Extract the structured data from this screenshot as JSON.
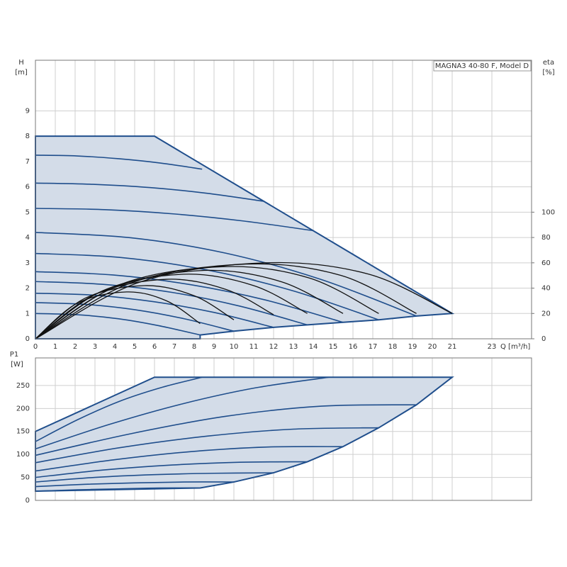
{
  "chart_data": [
    {
      "type": "line",
      "annotation": "MAGNA3 40-80 F, Model D",
      "y_label": "H",
      "y_unit": "[m]",
      "y2_label": "eta",
      "y2_unit": "[%]",
      "x_label": "Q [m³/h]",
      "xlim": [
        0,
        25
      ],
      "xticks": [
        0,
        1,
        2,
        3,
        4,
        5,
        6,
        7,
        8,
        9,
        10,
        11,
        12,
        13,
        14,
        15,
        16,
        17,
        18,
        19,
        20,
        21,
        23
      ],
      "ylim": [
        0,
        11
      ],
      "yticks": [
        0,
        1,
        2,
        3,
        4,
        5,
        6,
        7,
        8,
        9
      ],
      "y2lim": [
        0,
        220
      ],
      "y2ticks": [
        0,
        20,
        40,
        60,
        80,
        100
      ],
      "grid": true,
      "area": {
        "color": "#d3dce8",
        "edge": "#1f4e8c",
        "x": [
          0,
          0,
          6,
          21,
          19.2,
          17.3,
          15.5,
          13.7,
          12,
          10,
          8.3,
          8.3
        ],
        "values": [
          0,
          8,
          8,
          1.0,
          0.9,
          0.75,
          0.65,
          0.55,
          0.45,
          0.3,
          0.15,
          0
        ]
      },
      "series": [
        {
          "color": "#1f4e8c",
          "x": [
            0,
            2.1,
            4.2,
            6.2,
            8.3
          ],
          "values": [
            1.0,
            0.95,
            0.79,
            0.52,
            0.15
          ]
        },
        {
          "color": "#1f4e8c",
          "x": [
            0,
            2.5,
            5,
            7.5,
            10
          ],
          "values": [
            1.43,
            1.36,
            1.15,
            0.79,
            0.3
          ]
        },
        {
          "color": "#1f4e8c",
          "x": [
            0,
            3,
            6,
            9,
            12
          ],
          "values": [
            1.8,
            1.72,
            1.46,
            1.04,
            0.45
          ]
        },
        {
          "color": "#1f4e8c",
          "x": [
            0,
            3.4,
            6.9,
            10.3,
            13.7
          ],
          "values": [
            2.26,
            2.15,
            1.83,
            1.29,
            0.55
          ]
        },
        {
          "color": "#1f4e8c",
          "x": [
            0,
            3.9,
            7.8,
            11.6,
            15.5
          ],
          "values": [
            2.65,
            2.52,
            2.14,
            1.53,
            0.65
          ]
        },
        {
          "color": "#1f4e8c",
          "x": [
            0,
            4.3,
            8.7,
            13,
            17.3
          ],
          "values": [
            3.37,
            3.21,
            2.71,
            1.89,
            0.75
          ]
        },
        {
          "color": "#1f4e8c",
          "x": [
            0,
            4.8,
            9.6,
            14.4,
            19.2
          ],
          "values": [
            4.2,
            3.99,
            3.38,
            2.34,
            0.9
          ]
        },
        {
          "color": "#1f4e8c",
          "x": [
            0,
            3.5,
            7,
            10.5,
            14
          ],
          "values": [
            5.15,
            5.1,
            4.93,
            4.65,
            4.27
          ]
        },
        {
          "color": "#1f4e8c",
          "x": [
            0,
            2.9,
            5.8,
            8.6,
            11.5
          ],
          "values": [
            6.15,
            6.1,
            5.97,
            5.75,
            5.43
          ]
        },
        {
          "color": "#1f4e8c",
          "x": [
            0,
            2.1,
            4.2,
            6.3,
            8.4
          ],
          "values": [
            7.25,
            7.22,
            7.11,
            6.94,
            6.7
          ]
        },
        {
          "color": "#111111",
          "axis": "y2",
          "x": [
            0,
            2.1,
            4.6,
            6.6,
            8.3
          ],
          "values": [
            0,
            28,
            37,
            30,
            12
          ]
        },
        {
          "color": "#111111",
          "axis": "y2",
          "x": [
            0,
            2.5,
            5.5,
            8,
            10
          ],
          "values": [
            0,
            32,
            42,
            34,
            15
          ]
        },
        {
          "color": "#111111",
          "axis": "y2",
          "x": [
            0,
            3,
            6.6,
            9.6,
            12
          ],
          "values": [
            0,
            35,
            47,
            39,
            19
          ]
        },
        {
          "color": "#111111",
          "axis": "y2",
          "x": [
            0,
            3.4,
            7.5,
            11,
            13.7
          ],
          "values": [
            0,
            38,
            51,
            42,
            20
          ]
        },
        {
          "color": "#111111",
          "axis": "y2",
          "x": [
            0,
            3.9,
            8.5,
            12.4,
            15.5
          ],
          "values": [
            0,
            40,
            54,
            45,
            20
          ]
        },
        {
          "color": "#111111",
          "axis": "y2",
          "x": [
            0,
            4.3,
            9.5,
            13.8,
            17.3
          ],
          "values": [
            0,
            43,
            57,
            48,
            20
          ]
        },
        {
          "color": "#111111",
          "axis": "y2",
          "x": [
            0,
            4.8,
            10.6,
            15.4,
            19.2
          ],
          "values": [
            0,
            44,
            59,
            50,
            20
          ]
        },
        {
          "color": "#111111",
          "axis": "y2",
          "x": [
            0,
            5.3,
            11.6,
            16.8,
            21
          ],
          "values": [
            0,
            45,
            60,
            51,
            20
          ]
        }
      ]
    },
    {
      "type": "line",
      "y_label": "P1",
      "y_unit": "[W]",
      "xlim": [
        0,
        25
      ],
      "ylim": [
        0,
        310
      ],
      "yticks": [
        0,
        50,
        100,
        150,
        200,
        250
      ],
      "grid": true,
      "area": {
        "color": "#d3dce8",
        "edge": "#1f4e8c",
        "x": [
          0,
          6,
          21,
          19.2,
          17.3,
          15.5,
          13.7,
          12,
          10,
          8.3,
          0
        ],
        "values": [
          150,
          268,
          268,
          208,
          158,
          117,
          84,
          60,
          40,
          27,
          20
        ]
      },
      "series": [
        {
          "color": "#1f4e8c",
          "x": [
            0,
            2.1,
            4.2,
            6.3,
            8.4
          ],
          "values": [
            128,
            175,
            215,
            245,
            268
          ]
        },
        {
          "color": "#1f4e8c",
          "x": [
            0,
            3.7,
            7.4,
            11.1,
            14.8
          ],
          "values": [
            112,
            165,
            210,
            245,
            268
          ]
        },
        {
          "color": "#1f4e8c",
          "x": [
            0,
            4.8,
            9.6,
            14.4,
            19.2
          ],
          "values": [
            98,
            145,
            183,
            205,
            208
          ]
        },
        {
          "color": "#1f4e8c",
          "x": [
            0,
            4.3,
            8.7,
            13,
            17.3
          ],
          "values": [
            82,
            115,
            140,
            155,
            158
          ]
        },
        {
          "color": "#1f4e8c",
          "x": [
            0,
            3.9,
            7.8,
            11.6,
            15.5
          ],
          "values": [
            64,
            88,
            106,
            116,
            117
          ]
        },
        {
          "color": "#1f4e8c",
          "x": [
            0,
            3.4,
            6.9,
            10.3,
            13.7
          ],
          "values": [
            50,
            66,
            77,
            83,
            84
          ]
        },
        {
          "color": "#1f4e8c",
          "x": [
            0,
            3,
            6,
            9,
            12
          ],
          "values": [
            40,
            50,
            56,
            59,
            60
          ]
        },
        {
          "color": "#1f4e8c",
          "x": [
            0,
            2.5,
            5,
            7.5,
            10
          ],
          "values": [
            30,
            35,
            38,
            40,
            40
          ]
        },
        {
          "color": "#1f4e8c",
          "x": [
            0,
            2.1,
            4.2,
            6.2,
            8.3
          ],
          "values": [
            20,
            23,
            25,
            27,
            27
          ]
        }
      ]
    }
  ]
}
